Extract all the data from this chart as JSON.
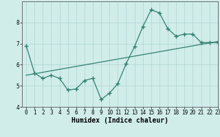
{
  "x_data": [
    0,
    1,
    2,
    3,
    4,
    5,
    6,
    7,
    8,
    9,
    10,
    11,
    12,
    13,
    14,
    15,
    16,
    17,
    18,
    19,
    20,
    21,
    22,
    23
  ],
  "y_data": [
    6.9,
    5.6,
    5.35,
    5.5,
    5.35,
    4.8,
    4.85,
    5.25,
    5.35,
    4.35,
    4.65,
    5.1,
    6.05,
    6.85,
    7.8,
    8.6,
    8.45,
    7.7,
    7.35,
    7.45,
    7.45,
    7.05,
    7.05,
    7.05
  ],
  "trend_x": [
    0,
    23
  ],
  "trend_y": [
    5.5,
    7.1
  ],
  "line_color": "#2e7d6e",
  "bg_color": "#d0edea",
  "grid_color": "#aed4cf",
  "xlabel": "Humidex (Indice chaleur)",
  "ylim": [
    4.0,
    9.0
  ],
  "xlim": [
    -0.5,
    23
  ],
  "yticks": [
    4,
    5,
    6,
    7,
    8
  ],
  "xticks": [
    0,
    1,
    2,
    3,
    4,
    5,
    6,
    7,
    8,
    9,
    10,
    11,
    12,
    13,
    14,
    15,
    16,
    17,
    18,
    19,
    20,
    21,
    22,
    23
  ],
  "xlabel_fontsize": 7,
  "tick_fontsize": 5.5
}
